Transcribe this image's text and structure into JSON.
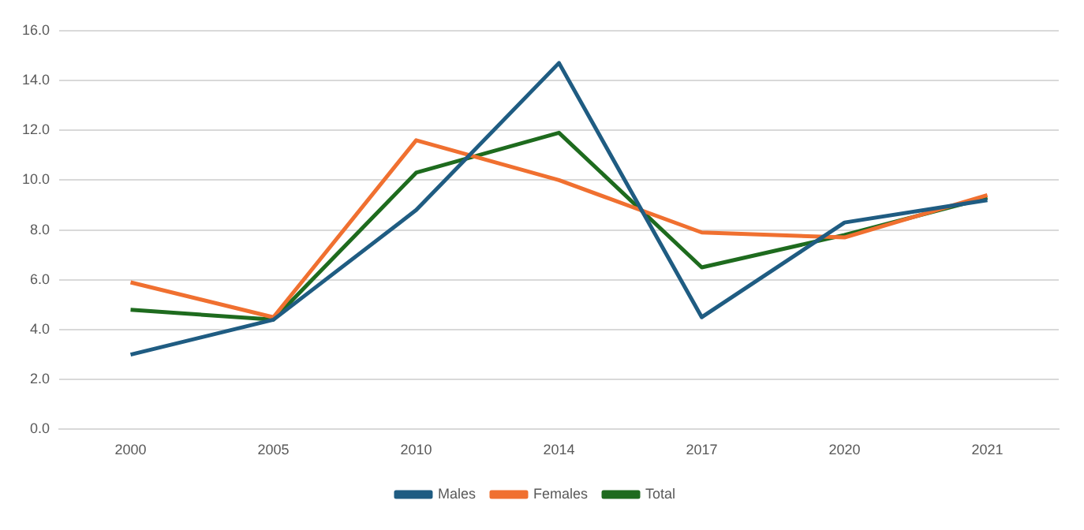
{
  "chart_data": {
    "type": "line",
    "categories": [
      "2000",
      "2005",
      "2010",
      "2014",
      "2017",
      "2020",
      "2021"
    ],
    "series": [
      {
        "name": "Males",
        "color": "#1f5c82",
        "values": [
          3.0,
          4.4,
          8.8,
          14.7,
          4.5,
          8.3,
          9.2
        ]
      },
      {
        "name": "Females",
        "color": "#f07030",
        "values": [
          5.9,
          4.5,
          11.6,
          10.0,
          7.9,
          7.7,
          9.4
        ]
      },
      {
        "name": "Total",
        "color": "#1e6b1e",
        "values": [
          4.8,
          4.4,
          10.3,
          11.9,
          6.5,
          7.8,
          9.3
        ]
      }
    ],
    "ylim": [
      0,
      16
    ],
    "yticks": [
      {
        "value": 0,
        "label": "0.0"
      },
      {
        "value": 2,
        "label": "2.0"
      },
      {
        "value": 4,
        "label": "4.0"
      },
      {
        "value": 6,
        "label": "6.0"
      },
      {
        "value": 8,
        "label": "8.0"
      },
      {
        "value": 10,
        "label": "10.0"
      },
      {
        "value": 12,
        "label": "12.0"
      },
      {
        "value": 14,
        "label": "14.0"
      },
      {
        "value": 16,
        "label": "16.0"
      }
    ],
    "grid": "y",
    "legend": "bottom",
    "marker": "none",
    "line_style": "solid"
  }
}
